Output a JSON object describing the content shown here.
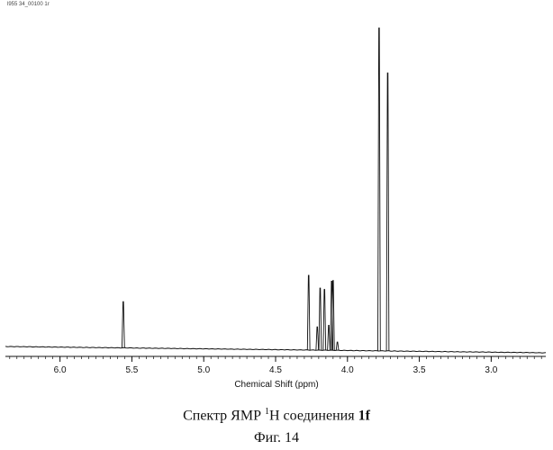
{
  "file_label": "l955 34_00100 1r",
  "caption": {
    "prefix": "Спектр ЯМР ",
    "superscript": "1",
    "nucleus": "H соединения ",
    "compound": "1f"
  },
  "figure_label": "Фиг. 14",
  "chart_data": {
    "type": "line",
    "xlabel": "Chemical Shift (ppm)",
    "ylabel": "",
    "x_reversed": true,
    "xlim": [
      6.38,
      2.62
    ],
    "ylim": [
      0,
      100
    ],
    "x_ticks": [
      6.0,
      5.5,
      5.0,
      4.5,
      4.0,
      3.5,
      3.0
    ],
    "x_tick_labels": [
      "6.0",
      "5.5",
      "5.0",
      "4.5",
      "4.0",
      "3.5",
      "3.0"
    ],
    "minor_tick_step": 0.05,
    "grid": false,
    "peaks": [
      {
        "ppm": 5.56,
        "intensity": 14.0
      },
      {
        "ppm": 4.27,
        "intensity": 22.5
      },
      {
        "ppm": 4.21,
        "intensity": 7.0
      },
      {
        "ppm": 4.19,
        "intensity": 18.7
      },
      {
        "ppm": 4.16,
        "intensity": 18.3
      },
      {
        "ppm": 4.13,
        "intensity": 7.5
      },
      {
        "ppm": 4.11,
        "intensity": 20.8
      },
      {
        "ppm": 4.1,
        "intensity": 21.0
      },
      {
        "ppm": 4.07,
        "intensity": 2.5
      },
      {
        "ppm": 3.78,
        "intensity": 97.0
      },
      {
        "ppm": 3.72,
        "intensity": 83.5
      }
    ]
  }
}
